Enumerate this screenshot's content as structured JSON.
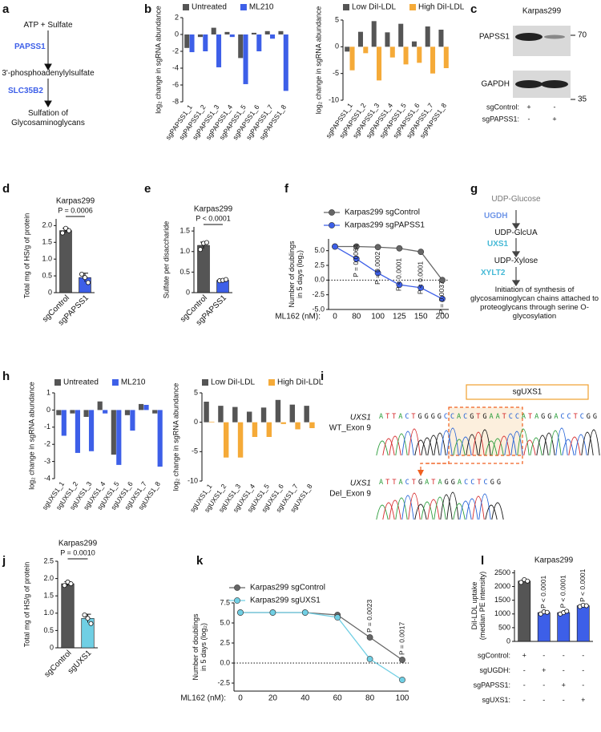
{
  "panel_labels": [
    "a",
    "b",
    "c",
    "d",
    "e",
    "f",
    "g",
    "h",
    "i",
    "j",
    "k",
    "l"
  ],
  "pathway_a": {
    "steps": [
      "ATP + Sulfate",
      "3'-phosphoadenylylsulfate",
      "Sulfation of Glycosaminoglycans"
    ],
    "enzymes": [
      "PAPSS1",
      "SLC35B2"
    ]
  },
  "blot_c": {
    "title": "Karpas299",
    "bands": [
      "PAPSS1",
      "GAPDH"
    ],
    "markers": [
      "70",
      "35"
    ],
    "rows": [
      {
        "label": "sgControl:",
        "signs": [
          "+",
          "-"
        ]
      },
      {
        "label": "sgPAPSS1:",
        "signs": [
          "-",
          "+"
        ]
      }
    ]
  },
  "pathway_g": {
    "steps": [
      "UDP-Glucose",
      "UDP-GlcUA",
      "UDP-Xylose",
      "Initiation of synthesis of glycosaminoglycan chains attached to proteoglycans through serine O-glycosylation"
    ],
    "enzymes": [
      "UGDH",
      "UXS1",
      "XYLT2"
    ]
  },
  "sequencing_i": {
    "guide": "sgUXS1",
    "tracks": [
      {
        "gene": "UXS1",
        "label": "WT_Exon 9",
        "sequence": "ATTACTGGGGCCACGTGAATCCATAGGACCTCGG"
      },
      {
        "gene": "UXS1",
        "label": "Del_Exon 9",
        "sequence": "ATTACTGATAGGACCTCGG"
      }
    ]
  },
  "chart_data": [
    {
      "type": "bar",
      "ylabel": "log₂ change in sgRNA abundance",
      "categories": [
        "sgPAPSS1_1",
        "sgPAPSS1_2",
        "sgPAPSS1_3",
        "sgPAPSS1_4",
        "sgPAPSS1_5",
        "sgPAPSS1_6",
        "sgPAPSS1_7",
        "sgPAPSS1_8"
      ],
      "series": [
        {
          "name": "Untreated",
          "color": "#555555",
          "values": [
            -1.6,
            -0.3,
            0.8,
            0.3,
            -2.8,
            0.2,
            0.4,
            0.4
          ]
        },
        {
          "name": "ML210",
          "color": "#3d5fe8",
          "values": [
            -2.1,
            -2.0,
            -3.9,
            -0.3,
            -5.9,
            -2.0,
            -0.5,
            -6.7
          ]
        }
      ],
      "ylim": [
        -8,
        2
      ],
      "yticks": [
        2,
        0,
        -2,
        -4,
        -6,
        -8
      ],
      "legend": "top"
    },
    {
      "type": "bar",
      "ylabel": "log₂ change in sgRNA abundance",
      "categories": [
        "sgPAPSS1_1",
        "sgPAPSS1_2",
        "sgPAPSS1_3",
        "sgPAPSS1_4",
        "sgPAPSS1_5",
        "sgPAPSS1_6",
        "sgPAPSS1_7",
        "sgPAPSS1_8"
      ],
      "series": [
        {
          "name": "Low DiI-LDL",
          "color": "#555555",
          "values": [
            -0.9,
            2.8,
            4.8,
            2.7,
            4.3,
            1.0,
            3.8,
            3.2
          ]
        },
        {
          "name": "High DiI-LDL",
          "color": "#f5aa38",
          "values": [
            -4.4,
            -1.2,
            -6.3,
            -2.0,
            -3.3,
            -3.0,
            -5.0,
            -4.0
          ]
        }
      ],
      "ylim": [
        -10,
        5
      ],
      "yticks": [
        5,
        0,
        -5,
        -10
      ],
      "legend": "top"
    },
    {
      "type": "bar",
      "title": "Karpas299",
      "ylabel": "Total mg of HS/g of protein",
      "categories": [
        "sgControl",
        "sgPAPSS1"
      ],
      "values": [
        1.85,
        0.45
      ],
      "errors": [
        0.07,
        0.13
      ],
      "colors": [
        "#555555",
        "#3d5fe8"
      ],
      "points": [
        [
          1.78,
          1.92,
          1.85
        ],
        [
          0.55,
          0.45,
          0.3
        ]
      ],
      "ylim": [
        0,
        2.2
      ],
      "yticks": [
        0,
        0.5,
        {
          "value": 1,
          "label": "1.0"
        },
        1.5,
        {
          "value": 2,
          "label": "2.0"
        }
      ],
      "annotations": [
        "P = 0.0006"
      ]
    },
    {
      "type": "bar",
      "title": "Karpas299",
      "ylabel": "Sulfate per disaccharide",
      "categories": [
        "sgControl",
        "sgPAPSS1"
      ],
      "values": [
        1.15,
        0.3
      ],
      "errors": [
        0.08,
        0.02
      ],
      "colors": [
        "#555555",
        "#3d5fe8"
      ],
      "points": [
        [
          1.05,
          1.2,
          1.22
        ],
        [
          0.29,
          0.3,
          0.32
        ]
      ],
      "ylim": [
        0,
        1.6
      ],
      "yticks": [
        0,
        0.5,
        {
          "value": 1,
          "label": "1.0"
        },
        1.5
      ],
      "annotations": [
        "P < 0.0001"
      ]
    },
    {
      "type": "line",
      "ylabel": "Number of doublings in 5 days (log₂)",
      "xlabel": "ML162 (nM):",
      "categories": [
        "0",
        "80",
        "100",
        "125",
        "150",
        "200"
      ],
      "series": [
        {
          "name": "Karpas299 sgControl",
          "color": "#666666",
          "values": [
            5.7,
            5.7,
            5.6,
            5.4,
            4.8,
            0
          ]
        },
        {
          "name": "Karpas299 sgPAPSS1",
          "color": "#3d5fe8",
          "values": [
            5.7,
            3.6,
            1.2,
            -0.8,
            -1.3,
            -3.2
          ]
        }
      ],
      "ylim": [
        -5,
        7
      ],
      "yticks": [
        {
          "value": 5,
          "label": "5.0"
        },
        2.5,
        {
          "value": 0,
          "label": "0.0"
        },
        -2.5,
        {
          "value": -5,
          "label": "-5.0"
        }
      ],
      "zero_line": true,
      "legend": "top",
      "annotations": [
        "P = 0.0064",
        "P = 0.0002",
        "P < 0.0001",
        "P < 0.0001",
        "P = 0.0037"
      ]
    },
    {
      "type": "bar",
      "ylabel": "log₂ change in sgRNA abundance",
      "categories": [
        "sgUXS1_1",
        "sgUXS1_2",
        "sgUXS1_3",
        "sgUXS1_4",
        "sgUXS1_5",
        "sgUXS1_6",
        "sgUXS1_7",
        "sgUXS1_8"
      ],
      "series": [
        {
          "name": "Untreated",
          "color": "#555555",
          "values": [
            -0.3,
            -0.2,
            -0.4,
            0.5,
            -2.6,
            -0.3,
            0.35,
            -0.2
          ]
        },
        {
          "name": "ML210",
          "color": "#3d5fe8",
          "values": [
            -1.5,
            -2.5,
            -2.4,
            -0.2,
            -3.2,
            -1.2,
            0.3,
            -3.3
          ]
        }
      ],
      "ylim": [
        -4,
        1
      ],
      "yticks": [
        1,
        0,
        -1,
        -2,
        -3,
        -4
      ],
      "legend": "top"
    },
    {
      "type": "bar",
      "ylabel": "log₂ change in sgRNA abundance",
      "categories": [
        "sgUXS1_1",
        "sgUXS1_2",
        "sgUXS1_3",
        "sgUXS1_4",
        "sgUXS1_5",
        "sgUXS1_6",
        "sgUXS1_7",
        "sgUXS1_8"
      ],
      "series": [
        {
          "name": "Low DiI-LDL",
          "color": "#555555",
          "values": [
            3.5,
            2.8,
            2.6,
            1.8,
            2.5,
            3.8,
            3.0,
            2.8
          ]
        },
        {
          "name": "High DiI-LDL",
          "color": "#f5aa38",
          "values": [
            0.1,
            -6.0,
            -6.0,
            -2.5,
            -2.5,
            -0.3,
            -1.2,
            -1.0
          ]
        }
      ],
      "ylim": [
        -10,
        5
      ],
      "yticks": [
        5,
        0,
        -5,
        -10
      ],
      "legend": "top"
    },
    {
      "type": "bar",
      "title": "Karpas299",
      "ylabel": "Total mg of HS/g of protein",
      "categories": [
        "sgControl",
        "sgUXS1"
      ],
      "values": [
        1.85,
        0.85
      ],
      "errors": [
        0.06,
        0.12
      ],
      "colors": [
        "#555555",
        "#70cfe4"
      ],
      "points": [
        [
          1.8,
          1.9,
          1.85
        ],
        [
          0.95,
          0.85,
          0.7
        ]
      ],
      "ylim": [
        0,
        2.5
      ],
      "yticks": [
        0,
        0.5,
        {
          "value": 1,
          "label": "1.0"
        },
        1.5,
        {
          "value": 2,
          "label": "2.0"
        },
        2.5
      ],
      "annotations": [
        "P = 0.0010"
      ]
    },
    {
      "type": "line",
      "ylabel": "Number of doublings in 5 days (log₂)",
      "xlabel": "ML162 (nM):",
      "categories": [
        "0",
        "20",
        "40",
        "60",
        "80",
        "100"
      ],
      "series": [
        {
          "name": "Karpas299 sgControl",
          "color": "#666666",
          "values": [
            6.3,
            6.3,
            6.3,
            6.0,
            3.2,
            0.4
          ]
        },
        {
          "name": "Karpas299 sgUXS1",
          "color": "#70cfe4",
          "values": [
            6.3,
            6.3,
            6.3,
            5.7,
            0.5,
            -2.1
          ]
        }
      ],
      "ylim": [
        -3.5,
        7.5
      ],
      "yticks": [
        7.5,
        {
          "value": 5,
          "label": "5.0"
        },
        2.5,
        {
          "value": 0,
          "label": "0.0"
        },
        -2.5
      ],
      "zero_line": true,
      "legend": "top",
      "annotations": [
        "P = 0.0023",
        "P = 0.0017"
      ]
    },
    {
      "type": "bar",
      "title": "Karpas299",
      "ylabel": "DiI-LDL uptake (median PE intensity)",
      "values": [
        2200,
        1050,
        1050,
        1300
      ],
      "colors": [
        "#555555",
        "#3d5fe8",
        "#3d5fe8",
        "#3d5fe8"
      ],
      "points": [
        [
          2150,
          2250,
          2200
        ],
        [
          1000,
          1080,
          1060
        ],
        [
          1000,
          1050,
          1100
        ],
        [
          1270,
          1320,
          1300
        ]
      ],
      "ylim": [
        0,
        2600
      ],
      "yticks": [
        0,
        500,
        1000,
        1500,
        2000,
        2500
      ],
      "annotations": [
        "P < 0.0001",
        "P < 0.0001",
        "P < 0.0001"
      ],
      "conditions": [
        {
          "label": "sgControl:",
          "signs": [
            "+",
            "-",
            "-",
            "-"
          ]
        },
        {
          "label": "sgUGDH:",
          "signs": [
            "-",
            "+",
            "-",
            "-"
          ]
        },
        {
          "label": "sgPAPSS1:",
          "signs": [
            "-",
            "-",
            "+",
            "-"
          ]
        },
        {
          "label": "sgUXS1:",
          "signs": [
            "-",
            "-",
            "-",
            "+"
          ]
        }
      ]
    }
  ]
}
